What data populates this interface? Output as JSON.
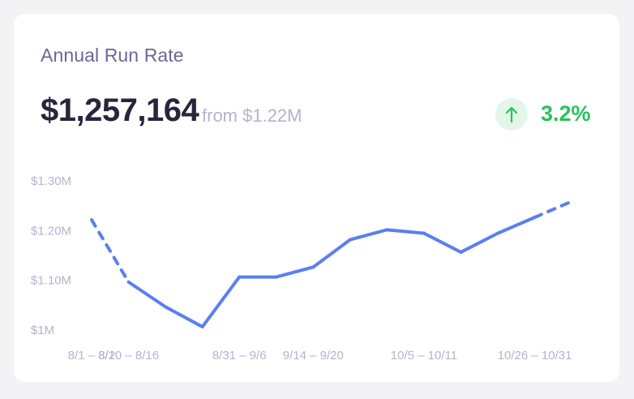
{
  "card": {
    "title": "Annual Run Rate",
    "value": "$1,257,164",
    "from": "from $1.22M",
    "delta": "3.2%",
    "delta_direction_icon": "arrow-up-icon",
    "delta_color": "#27c25a"
  },
  "chart_data": {
    "type": "line",
    "title": "",
    "xlabel": "",
    "ylabel": "",
    "line_color": "#5b7ff0",
    "grid": false,
    "ylim": [
      1.0,
      1.3
    ],
    "yticks": [
      {
        "value": 1.3,
        "label": "$1.30M"
      },
      {
        "value": 1.2,
        "label": "$1.20M"
      },
      {
        "value": 1.1,
        "label": "$1.10M"
      },
      {
        "value": 1.0,
        "label": "$1M"
      }
    ],
    "xtick_labels": [
      {
        "index": 0,
        "label": "8/1 – 8/2"
      },
      {
        "index": 1,
        "label": "8/10 – 8/16"
      },
      {
        "index": 4,
        "label": "8/31 – 9/6"
      },
      {
        "index": 6,
        "label": "9/14 – 9/20"
      },
      {
        "index": 9,
        "label": "10/5 – 10/11"
      },
      {
        "index": 12,
        "label": "10/26 – 10/31"
      }
    ],
    "series": [
      {
        "values": [
          1.22,
          1.095,
          1.045,
          1.005,
          1.105,
          1.105,
          1.125,
          1.18,
          1.2,
          1.193,
          1.155,
          1.193,
          1.225,
          1.257
        ],
        "dashed_segments": [
          0,
          12
        ]
      }
    ]
  }
}
